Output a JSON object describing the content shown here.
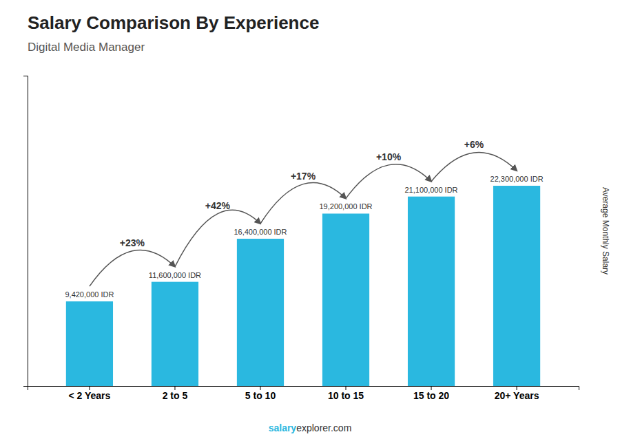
{
  "chart_data": {
    "type": "bar",
    "title": "Salary Comparison By Experience",
    "subtitle": "Digital Media Manager",
    "y_label": "Average Monthly Salary",
    "categories": [
      "< 2 Years",
      "2 to 5",
      "5 to 10",
      "10 to 15",
      "15 to 20",
      "20+ Years"
    ],
    "values": [
      9420000,
      11600000,
      16400000,
      19200000,
      21100000,
      22300000
    ],
    "value_labels": [
      "9,420,000 IDR",
      "11,600,000 IDR",
      "16,400,000 IDR",
      "19,200,000 IDR",
      "21,100,000 IDR",
      "22,300,000 IDR"
    ],
    "data_labels": true,
    "annotations": [
      "+23%",
      "+42%",
      "+17%",
      "+10%",
      "+6%"
    ],
    "footer": [
      "salary",
      "explorer.com"
    ],
    "color": "#2ab8e0",
    "ylim": [
      0,
      34565000
    ],
    "yticks": [],
    "tick_labels": "x",
    "grid": false
  }
}
